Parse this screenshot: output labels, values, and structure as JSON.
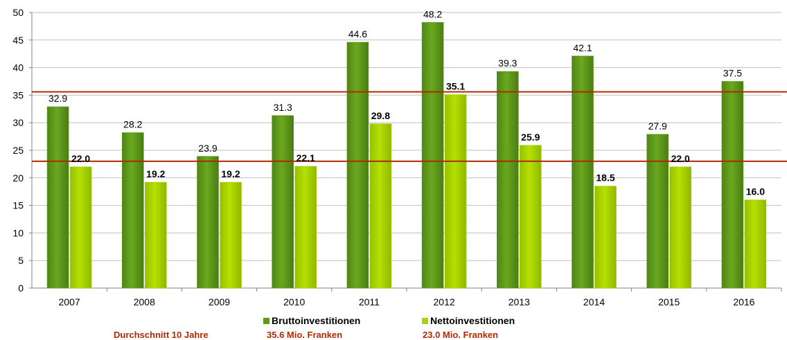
{
  "chart_data": {
    "type": "bar",
    "categories": [
      "2007",
      "2008",
      "2009",
      "2010",
      "2011",
      "2012",
      "2013",
      "2014",
      "2015",
      "2016"
    ],
    "series": [
      {
        "name": "Bruttoinvestitionen",
        "values": [
          32.9,
          28.2,
          23.9,
          31.3,
          44.6,
          48.2,
          39.3,
          42.1,
          27.9,
          37.5
        ],
        "color": "#5f9a1a",
        "labels": [
          "32.9",
          "28.2",
          "23.9",
          "31.3",
          "44.6",
          "48.2",
          "39.3",
          "42.1",
          "27.9",
          "37.5"
        ]
      },
      {
        "name": "Nettoinvestitionen",
        "values": [
          22.0,
          19.2,
          19.2,
          22.1,
          29.8,
          35.1,
          25.9,
          18.5,
          22.0,
          16.0
        ],
        "color": "#a8d400",
        "labels": [
          "22.0",
          "19.2",
          "19.2",
          "22.1",
          "29.8",
          "35.1",
          "25.9",
          "18.5",
          "22.0",
          "16.0"
        ]
      }
    ],
    "ylim": [
      0,
      50
    ],
    "yticks": [
      "0",
      "5",
      "10",
      "15",
      "20",
      "25",
      "30",
      "35",
      "40",
      "45",
      "50"
    ],
    "reference_lines": [
      {
        "value": 35.6,
        "color": "#b22a00"
      },
      {
        "value": 23.0,
        "color": "#b22a00"
      }
    ],
    "legend_position": "bottom",
    "grid": "horizontal"
  },
  "footer": {
    "average_label": "Durchschnitt 10 Jahre",
    "brutto_avg": "35.6 Mio. Franken",
    "netto_avg": "23.0 Mio. Franken",
    "text_color": "#b22a00"
  }
}
